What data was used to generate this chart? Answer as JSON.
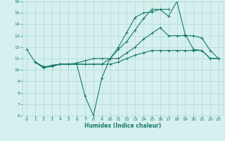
{
  "xlabel": "Humidex (Indice chaleur)",
  "xlim": [
    -0.5,
    23.5
  ],
  "ylim": [
    6,
    16
  ],
  "yticks": [
    6,
    7,
    8,
    9,
    10,
    11,
    12,
    13,
    14,
    15,
    16
  ],
  "xticks": [
    0,
    1,
    2,
    3,
    4,
    5,
    6,
    7,
    8,
    9,
    10,
    11,
    12,
    13,
    14,
    15,
    16,
    17,
    18,
    19,
    20,
    21,
    22,
    23
  ],
  "background_color": "#d5f0ee",
  "grid_color": "#b0d8d0",
  "line_color": "#1a7a6e",
  "lines": [
    {
      "x": [
        0,
        1,
        2,
        3,
        4,
        5,
        6,
        7,
        8,
        9,
        10,
        11,
        12,
        13,
        14,
        15,
        16,
        17,
        18,
        19,
        20,
        21,
        22,
        23
      ],
      "y": [
        11.8,
        10.7,
        10.3,
        10.3,
        10.5,
        10.5,
        10.5,
        7.7,
        6.0,
        9.3,
        11.0,
        12.0,
        13.3,
        14.6,
        15.0,
        15.1,
        15.3,
        14.7,
        16.0,
        13.1,
        11.8,
        11.7,
        11.0,
        11.0
      ]
    },
    {
      "x": [
        1,
        2,
        3,
        4,
        5,
        6,
        7,
        8,
        9,
        10,
        11,
        12,
        13,
        14,
        15,
        16,
        17
      ],
      "y": [
        10.7,
        10.2,
        10.3,
        10.5,
        10.5,
        10.5,
        10.5,
        10.5,
        10.5,
        11.0,
        11.8,
        12.5,
        13.5,
        14.5,
        15.3,
        15.3,
        15.3
      ]
    },
    {
      "x": [
        1,
        2,
        3,
        4,
        5,
        6,
        7,
        8,
        9,
        10,
        11,
        12,
        13,
        14,
        15,
        16,
        17,
        18,
        19,
        20,
        21,
        22,
        23
      ],
      "y": [
        10.7,
        10.2,
        10.4,
        10.5,
        10.5,
        10.5,
        10.5,
        10.5,
        10.5,
        10.5,
        10.7,
        11.0,
        11.3,
        11.5,
        11.7,
        11.7,
        11.7,
        11.7,
        11.7,
        11.7,
        11.7,
        11.0,
        11.0
      ]
    },
    {
      "x": [
        1,
        2,
        3,
        4,
        5,
        6,
        7,
        8,
        9,
        10,
        11,
        12,
        13,
        14,
        15,
        16,
        17,
        18,
        19,
        20,
        21,
        22,
        23
      ],
      "y": [
        10.7,
        10.2,
        10.4,
        10.5,
        10.5,
        10.6,
        10.8,
        11.0,
        11.0,
        11.0,
        11.0,
        11.5,
        12.0,
        12.7,
        13.2,
        13.7,
        13.0,
        13.0,
        13.0,
        13.0,
        12.8,
        11.7,
        11.0
      ]
    }
  ]
}
